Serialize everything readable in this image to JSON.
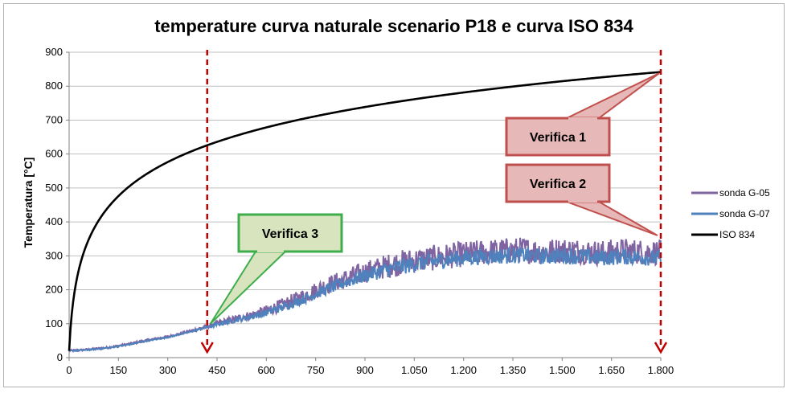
{
  "chart_data": {
    "type": "line",
    "title": "temperature curva naturale scenario P18 e curva ISO 834",
    "xlabel": "",
    "ylabel": "Temperatura [°C]",
    "xlim": [
      0,
      1800
    ],
    "ylim": [
      0,
      900
    ],
    "x_ticks": [
      "0",
      "150",
      "300",
      "450",
      "600",
      "750",
      "900",
      "1.050",
      "1.200",
      "1.350",
      "1.500",
      "1.650",
      "1.800"
    ],
    "y_ticks": [
      "0",
      "100",
      "200",
      "300",
      "400",
      "500",
      "600",
      "700",
      "800",
      "900"
    ],
    "grid": "horizontal",
    "legend": "right",
    "series": [
      {
        "name": "sonda G-05",
        "color": "#8064a2",
        "x": [
          0,
          60,
          120,
          180,
          240,
          300,
          360,
          420,
          480,
          540,
          600,
          660,
          720,
          780,
          840,
          900,
          960,
          1020,
          1080,
          1140,
          1200,
          1260,
          1320,
          1380,
          1440,
          1500,
          1560,
          1620,
          1680,
          1740,
          1800
        ],
        "y": [
          20,
          24,
          30,
          40,
          52,
          62,
          76,
          92,
          108,
          122,
          138,
          160,
          185,
          212,
          232,
          252,
          268,
          282,
          290,
          298,
          305,
          310,
          315,
          318,
          312,
          316,
          314,
          308,
          315,
          312,
          310
        ],
        "noise": 38
      },
      {
        "name": "sonda G-07",
        "color": "#4f81bd",
        "x": [
          0,
          60,
          120,
          180,
          240,
          300,
          360,
          420,
          480,
          540,
          600,
          660,
          720,
          780,
          840,
          900,
          960,
          1020,
          1080,
          1140,
          1200,
          1260,
          1320,
          1380,
          1440,
          1500,
          1560,
          1620,
          1680,
          1740,
          1800
        ],
        "y": [
          20,
          23,
          29,
          38,
          50,
          60,
          74,
          90,
          105,
          118,
          132,
          152,
          175,
          200,
          222,
          242,
          258,
          270,
          280,
          288,
          294,
          298,
          300,
          302,
          298,
          300,
          298,
          294,
          298,
          296,
          292
        ],
        "noise": 24
      },
      {
        "name": "ISO 834",
        "color": "#000000",
        "function": "20 + 345*log10(8*t/60 + 1)"
      }
    ],
    "annotations": [
      {
        "label": "Verifica 1",
        "box_color": "#e6b8b7",
        "border_color": "#c0504d",
        "target": [
          1795,
          838
        ]
      },
      {
        "label": "Verifica 2",
        "box_color": "#e6b8b7",
        "border_color": "#c0504d",
        "target": [
          1790,
          360
        ]
      },
      {
        "label": "Verifica 3",
        "box_color": "#d7e4bd",
        "border_color": "#3ead4b",
        "target": [
          430,
          100
        ]
      }
    ],
    "vertical_markers": [
      {
        "x": 420,
        "color": "#c00000",
        "style": "dashed-arrow"
      },
      {
        "x": 1800,
        "color": "#c00000",
        "style": "dashed-arrow"
      }
    ]
  }
}
